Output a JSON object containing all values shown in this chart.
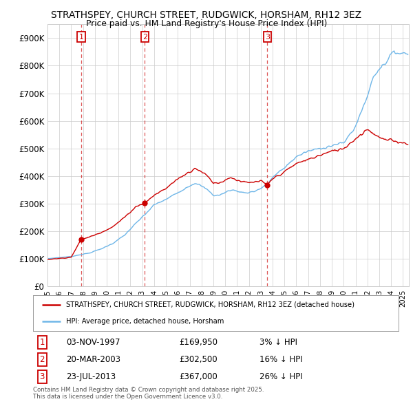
{
  "title": "STRATHSPEY, CHURCH STREET, RUDGWICK, HORSHAM, RH12 3EZ",
  "subtitle": "Price paid vs. HM Land Registry's House Price Index (HPI)",
  "ylim": [
    0,
    950000
  ],
  "yticks": [
    0,
    100000,
    200000,
    300000,
    400000,
    500000,
    600000,
    700000,
    800000,
    900000
  ],
  "ytick_labels": [
    "£0",
    "£100K",
    "£200K",
    "£300K",
    "£400K",
    "£500K",
    "£600K",
    "£700K",
    "£800K",
    "£900K"
  ],
  "hpi_color": "#6eb6e8",
  "sale_color": "#cc0000",
  "transactions": [
    {
      "label": "1",
      "date_dec": 1997.84,
      "price": 169950
    },
    {
      "label": "2",
      "date_dec": 2003.22,
      "price": 302500
    },
    {
      "label": "3",
      "date_dec": 2013.55,
      "price": 367000
    }
  ],
  "transaction_info": [
    {
      "num": "1",
      "date": "03-NOV-1997",
      "price": "£169,950",
      "pct": "3% ↓ HPI"
    },
    {
      "num": "2",
      "date": "20-MAR-2003",
      "price": "£302,500",
      "pct": "16% ↓ HPI"
    },
    {
      "num": "3",
      "date": "23-JUL-2013",
      "price": "£367,000",
      "pct": "26% ↓ HPI"
    }
  ],
  "legend_line1": "STRATHSPEY, CHURCH STREET, RUDGWICK, HORSHAM, RH12 3EZ (detached house)",
  "legend_line2": "HPI: Average price, detached house, Horsham",
  "footnote": "Contains HM Land Registry data © Crown copyright and database right 2025.\nThis data is licensed under the Open Government Licence v3.0.",
  "background_color": "#ffffff",
  "grid_color": "#cccccc",
  "hpi_keypoints": [
    [
      1995.0,
      100000
    ],
    [
      1997.0,
      108000
    ],
    [
      1997.84,
      115000
    ],
    [
      1998.5,
      120000
    ],
    [
      1999.5,
      135000
    ],
    [
      2000.5,
      155000
    ],
    [
      2001.5,
      185000
    ],
    [
      2002.5,
      230000
    ],
    [
      2003.22,
      260000
    ],
    [
      2004.0,
      295000
    ],
    [
      2005.0,
      315000
    ],
    [
      2006.0,
      340000
    ],
    [
      2007.0,
      365000
    ],
    [
      2007.5,
      375000
    ],
    [
      2008.5,
      350000
    ],
    [
      2009.0,
      330000
    ],
    [
      2009.5,
      330000
    ],
    [
      2010.5,
      350000
    ],
    [
      2011.0,
      345000
    ],
    [
      2011.5,
      340000
    ],
    [
      2012.0,
      340000
    ],
    [
      2012.5,
      345000
    ],
    [
      2013.0,
      355000
    ],
    [
      2013.55,
      370000
    ],
    [
      2014.0,
      395000
    ],
    [
      2015.0,
      430000
    ],
    [
      2016.0,
      470000
    ],
    [
      2017.0,
      490000
    ],
    [
      2018.0,
      500000
    ],
    [
      2019.0,
      510000
    ],
    [
      2020.0,
      520000
    ],
    [
      2021.0,
      580000
    ],
    [
      2022.0,
      690000
    ],
    [
      2022.5,
      760000
    ],
    [
      2023.0,
      790000
    ],
    [
      2023.5,
      810000
    ],
    [
      2024.0,
      840000
    ],
    [
      2024.5,
      850000
    ],
    [
      2025.0,
      845000
    ]
  ],
  "sale_keypoints": [
    [
      1995.0,
      97000
    ],
    [
      1997.0,
      105000
    ],
    [
      1997.84,
      169950
    ],
    [
      1998.5,
      178000
    ],
    [
      1999.5,
      195000
    ],
    [
      2000.5,
      215000
    ],
    [
      2001.5,
      250000
    ],
    [
      2002.5,
      290000
    ],
    [
      2003.22,
      302500
    ],
    [
      2004.0,
      330000
    ],
    [
      2005.0,
      355000
    ],
    [
      2006.0,
      390000
    ],
    [
      2007.0,
      415000
    ],
    [
      2007.5,
      430000
    ],
    [
      2008.5,
      400000
    ],
    [
      2009.0,
      375000
    ],
    [
      2009.5,
      375000
    ],
    [
      2010.5,
      395000
    ],
    [
      2011.0,
      385000
    ],
    [
      2011.5,
      378000
    ],
    [
      2012.0,
      375000
    ],
    [
      2012.5,
      378000
    ],
    [
      2013.0,
      382000
    ],
    [
      2013.55,
      367000
    ],
    [
      2014.0,
      390000
    ],
    [
      2015.0,
      415000
    ],
    [
      2016.0,
      445000
    ],
    [
      2017.0,
      460000
    ],
    [
      2018.0,
      475000
    ],
    [
      2019.0,
      490000
    ],
    [
      2020.0,
      500000
    ],
    [
      2021.0,
      535000
    ],
    [
      2022.0,
      570000
    ],
    [
      2022.5,
      555000
    ],
    [
      2023.0,
      540000
    ],
    [
      2023.5,
      530000
    ],
    [
      2024.0,
      530000
    ],
    [
      2024.5,
      525000
    ],
    [
      2025.0,
      520000
    ]
  ]
}
